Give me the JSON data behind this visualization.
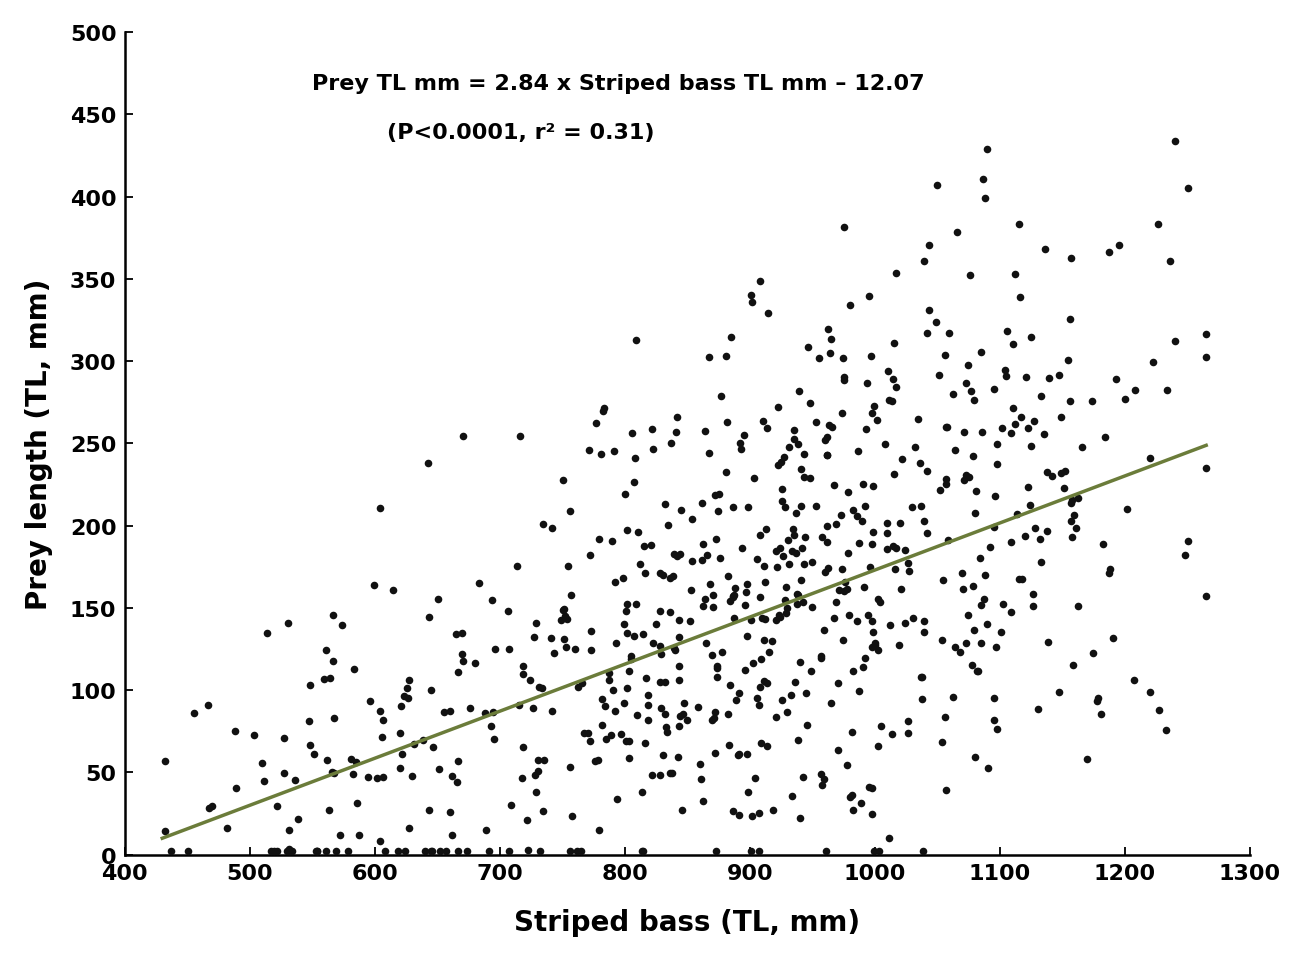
{
  "title_line1": "Prey TL mm = 2.84 x Striped bass TL mm – 12.07",
  "title_line2": "(P<0.0001, r² = 0.31)",
  "xlabel": "Striped bass (TL, mm)",
  "ylabel": "Prey length (TL, mm)",
  "xlim": [
    400,
    1300
  ],
  "ylim": [
    0,
    500
  ],
  "xticks": [
    400,
    500,
    600,
    700,
    800,
    900,
    1000,
    1100,
    1200,
    1300
  ],
  "yticks": [
    0,
    50,
    100,
    150,
    200,
    250,
    300,
    350,
    400,
    450,
    500
  ],
  "dot_color": "#111111",
  "line_color": "#6b7c3a",
  "regression_slope": 2.84,
  "regression_intercept": -12.07,
  "dot_size": 30,
  "background_color": "#ffffff",
  "font_size_annotation": 16,
  "font_size_axis_label": 20,
  "font_size_tick": 16,
  "seed": 42,
  "n_points": 750,
  "noise_std": 75
}
